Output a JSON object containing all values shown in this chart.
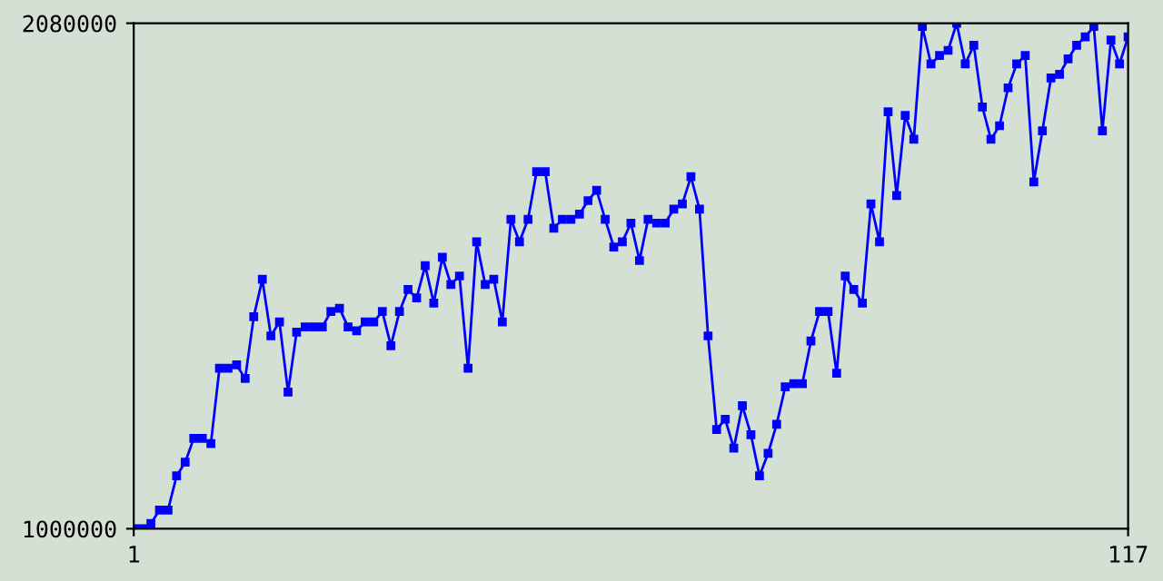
{
  "chart_data": {
    "type": "line",
    "x": [
      1,
      2,
      3,
      4,
      5,
      6,
      7,
      8,
      9,
      10,
      11,
      12,
      13,
      14,
      15,
      16,
      17,
      18,
      19,
      20,
      21,
      22,
      23,
      24,
      25,
      26,
      27,
      28,
      29,
      30,
      31,
      32,
      33,
      34,
      35,
      36,
      37,
      38,
      39,
      40,
      41,
      42,
      43,
      44,
      45,
      46,
      47,
      48,
      49,
      50,
      51,
      52,
      53,
      54,
      55,
      56,
      57,
      58,
      59,
      60,
      61,
      62,
      63,
      64,
      65,
      66,
      67,
      68,
      69,
      70,
      71,
      72,
      73,
      74,
      75,
      76,
      77,
      78,
      79,
      80,
      81,
      82,
      83,
      84,
      85,
      86,
      87,
      88,
      89,
      90,
      91,
      92,
      93,
      94,
      95,
      96,
      97,
      98,
      99,
      100,
      101,
      102,
      103,
      104,
      105,
      106,
      107,
      108,
      109,
      110,
      111,
      112,
      113,
      114,
      115,
      116,
      117
    ],
    "series": [
      {
        "color": "#0000ff",
        "values": [
          1000000,
          1000000,
          1011000,
          1040000,
          1040000,
          1113000,
          1142000,
          1193000,
          1193000,
          1182000,
          1343000,
          1343000,
          1350000,
          1321000,
          1453000,
          1533000,
          1412000,
          1442000,
          1292000,
          1420000,
          1431000,
          1431000,
          1431000,
          1464000,
          1471000,
          1431000,
          1423000,
          1442000,
          1442000,
          1464000,
          1391000,
          1464000,
          1511000,
          1493000,
          1562000,
          1482000,
          1580000,
          1522000,
          1540000,
          1343000,
          1613000,
          1522000,
          1533000,
          1442000,
          1661000,
          1613000,
          1661000,
          1763000,
          1763000,
          1642000,
          1661000,
          1661000,
          1672000,
          1701000,
          1723000,
          1661000,
          1602000,
          1613000,
          1653000,
          1573000,
          1661000,
          1653000,
          1653000,
          1683000,
          1694000,
          1752000,
          1683000,
          1412000,
          1212000,
          1234000,
          1172000,
          1263000,
          1201000,
          1113000,
          1161000,
          1223000,
          1303000,
          1310000,
          1310000,
          1401000,
          1464000,
          1464000,
          1332000,
          1540000,
          1511000,
          1482000,
          1694000,
          1613000,
          1891000,
          1712000,
          1883000,
          1832000,
          2073000,
          1993000,
          2011000,
          2022000,
          2080000,
          1993000,
          2033000,
          1901000,
          1832000,
          1861000,
          1942000,
          1993000,
          2011000,
          1741000,
          1850000,
          1963000,
          1971000,
          2004000,
          2033000,
          2051000,
          2073000,
          1850000,
          2044000,
          1993000,
          2051000
        ]
      }
    ],
    "xlim": [
      1,
      117
    ],
    "xticks": [
      1,
      117
    ],
    "ylim": [
      1000000,
      2080000
    ],
    "yticks": [
      1000000,
      2080000
    ],
    "marker": "square",
    "line_style": "solid",
    "grid": false,
    "legend": false
  }
}
